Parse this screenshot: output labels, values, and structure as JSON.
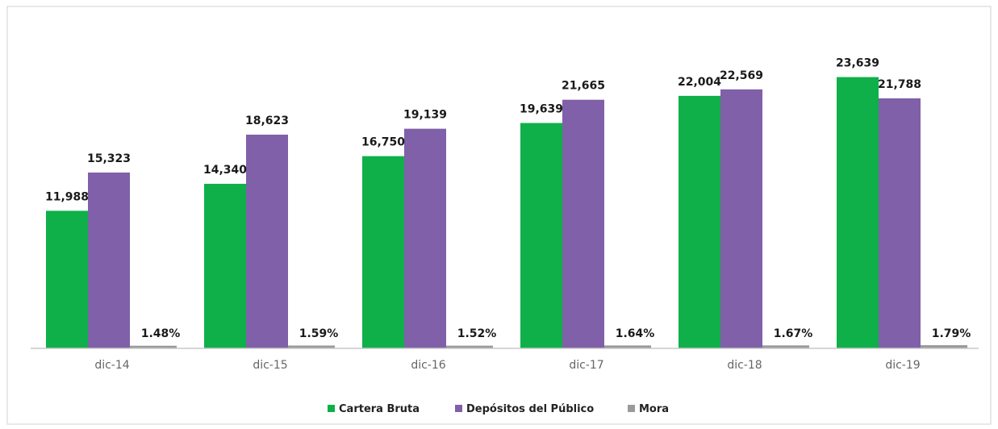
{
  "chart_data": {
    "type": "bar",
    "categories": [
      "dic-14",
      "dic-15",
      "dic-16",
      "dic-17",
      "dic-18",
      "dic-19"
    ],
    "series": [
      {
        "name": "Cartera Bruta",
        "color": "#0fb04a",
        "values": [
          11988,
          14340,
          16750,
          19639,
          22004,
          23639
        ],
        "labels": [
          "11,988",
          "14,340",
          "16,750",
          "19,639",
          "22,004",
          "23,639"
        ]
      },
      {
        "name": "Depósitos del Público",
        "color": "#8060a8",
        "values": [
          15323,
          18623,
          19139,
          21665,
          22569,
          21788
        ],
        "labels": [
          "15,323",
          "18,623",
          "19,139",
          "21,665",
          "22,569",
          "21,788"
        ]
      },
      {
        "name": "Mora",
        "color": "#9a9a9a",
        "values": [
          1.48,
          1.59,
          1.52,
          1.64,
          1.67,
          1.79
        ],
        "labels": [
          "1.48%",
          "1.59%",
          "1.52%",
          "1.64%",
          "1.67%",
          "1.79%"
        ]
      }
    ],
    "ylim": [
      0,
      26000
    ],
    "grid": false,
    "legend": "bottom"
  }
}
